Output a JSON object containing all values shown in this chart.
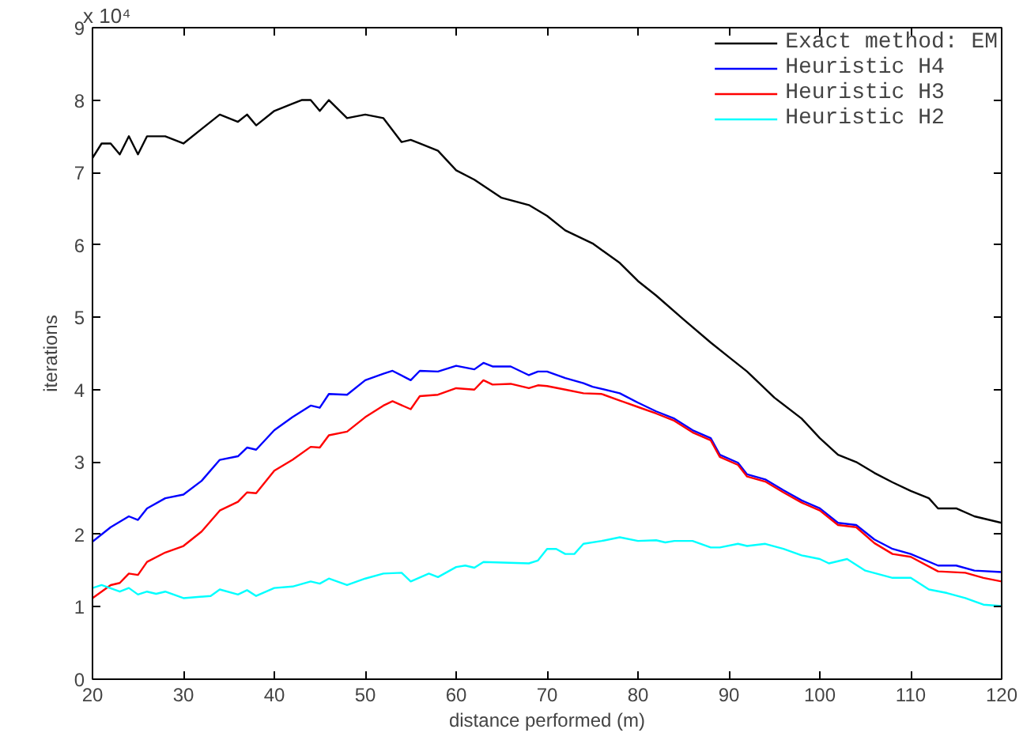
{
  "chart_data": {
    "type": "line",
    "xlabel": "distance performed (m)",
    "ylabel": "iterations",
    "annotations": [
      "x 10⁴"
    ],
    "xlim": [
      20,
      120
    ],
    "ylim": [
      0,
      9
    ],
    "xticks": [
      20,
      30,
      40,
      50,
      60,
      70,
      80,
      90,
      100,
      110,
      120
    ],
    "yticks": [
      0,
      1,
      2,
      3,
      4,
      5,
      6,
      7,
      8,
      9
    ],
    "grid": false,
    "legend": "top right",
    "line_style": "solid",
    "marker": "none",
    "series": [
      {
        "name": "Exact method: EM",
        "color": "#000000",
        "x": [
          20,
          21,
          22,
          23,
          24,
          25,
          26,
          28,
          30,
          32,
          34,
          36,
          37,
          38,
          40,
          42,
          43,
          44,
          45,
          46,
          48,
          50,
          52,
          54,
          55,
          56,
          58,
          60,
          62,
          65,
          68,
          70,
          72,
          75,
          78,
          80,
          82,
          85,
          88,
          90,
          92,
          95,
          98,
          100,
          102,
          104,
          106,
          108,
          110,
          112,
          113,
          115,
          117,
          120
        ],
        "values": [
          7.2,
          7.4,
          7.4,
          7.25,
          7.5,
          7.25,
          7.5,
          7.5,
          7.4,
          7.6,
          7.8,
          7.7,
          7.8,
          7.65,
          7.85,
          7.95,
          8.0,
          8.0,
          7.85,
          8.0,
          7.75,
          7.8,
          7.75,
          7.42,
          7.45,
          7.4,
          7.3,
          7.03,
          6.9,
          6.65,
          6.55,
          6.4,
          6.2,
          6.02,
          5.75,
          5.5,
          5.3,
          4.97,
          4.65,
          4.45,
          4.25,
          3.89,
          3.6,
          3.33,
          3.1,
          3.0,
          2.85,
          2.72,
          2.6,
          2.5,
          2.36,
          2.36,
          2.25,
          2.16
        ]
      },
      {
        "name": "Heuristic H4",
        "color": "#0000ff",
        "x": [
          20,
          22,
          24,
          25,
          26,
          28,
          30,
          32,
          34,
          36,
          37,
          38,
          40,
          42,
          44,
          45,
          46,
          48,
          50,
          52,
          53,
          55,
          56,
          58,
          60,
          62,
          63,
          64,
          66,
          68,
          69,
          70,
          72,
          74,
          75,
          78,
          80,
          82,
          84,
          86,
          88,
          89,
          91,
          92,
          94,
          96,
          98,
          100,
          102,
          104,
          106,
          108,
          110,
          113,
          115,
          117,
          120
        ],
        "values": [
          1.9,
          2.1,
          2.25,
          2.2,
          2.36,
          2.5,
          2.55,
          2.74,
          3.03,
          3.08,
          3.2,
          3.17,
          3.44,
          3.62,
          3.78,
          3.75,
          3.94,
          3.93,
          4.13,
          4.22,
          4.26,
          4.13,
          4.26,
          4.25,
          4.33,
          4.28,
          4.37,
          4.32,
          4.32,
          4.2,
          4.25,
          4.25,
          4.16,
          4.09,
          4.04,
          3.95,
          3.82,
          3.7,
          3.6,
          3.44,
          3.33,
          3.1,
          2.99,
          2.83,
          2.76,
          2.61,
          2.47,
          2.36,
          2.16,
          2.13,
          1.93,
          1.8,
          1.73,
          1.57,
          1.57,
          1.5,
          1.48
        ]
      },
      {
        "name": "Heuristic H3",
        "color": "#ff0000",
        "x": [
          20,
          22,
          23,
          24,
          25,
          26,
          28,
          30,
          32,
          34,
          36,
          37,
          38,
          40,
          42,
          44,
          45,
          46,
          48,
          50,
          52,
          53,
          55,
          56,
          58,
          60,
          62,
          63,
          64,
          66,
          68,
          69,
          70,
          72,
          74,
          76,
          78,
          80,
          82,
          84,
          86,
          88,
          89,
          91,
          92,
          94,
          96,
          98,
          100,
          102,
          104,
          106,
          108,
          110,
          113,
          116,
          118,
          120
        ],
        "values": [
          1.12,
          1.3,
          1.33,
          1.46,
          1.44,
          1.62,
          1.75,
          1.84,
          2.04,
          2.33,
          2.45,
          2.58,
          2.57,
          2.88,
          3.03,
          3.21,
          3.2,
          3.37,
          3.42,
          3.62,
          3.78,
          3.84,
          3.73,
          3.91,
          3.93,
          4.02,
          4.0,
          4.13,
          4.07,
          4.08,
          4.02,
          4.06,
          4.05,
          4.0,
          3.95,
          3.94,
          3.85,
          3.76,
          3.67,
          3.57,
          3.41,
          3.3,
          3.07,
          2.96,
          2.8,
          2.73,
          2.58,
          2.44,
          2.33,
          2.13,
          2.1,
          1.88,
          1.73,
          1.69,
          1.49,
          1.47,
          1.4,
          1.35
        ]
      },
      {
        "name": "Heuristic H2",
        "color": "#00ffff",
        "x": [
          20,
          21,
          23,
          24,
          25,
          26,
          27,
          28,
          30,
          33,
          34,
          36,
          37,
          38,
          40,
          42,
          44,
          45,
          46,
          48,
          50,
          52,
          54,
          55,
          57,
          58,
          60,
          61,
          62,
          63,
          68,
          69,
          70,
          71,
          72,
          73,
          74,
          76,
          78,
          80,
          82,
          83,
          84,
          86,
          88,
          89,
          91,
          92,
          94,
          96,
          98,
          100,
          101,
          103,
          105,
          108,
          110,
          112,
          114,
          116,
          118,
          120
        ],
        "values": [
          1.26,
          1.3,
          1.21,
          1.26,
          1.17,
          1.21,
          1.18,
          1.21,
          1.12,
          1.15,
          1.24,
          1.17,
          1.23,
          1.15,
          1.26,
          1.28,
          1.35,
          1.32,
          1.39,
          1.3,
          1.39,
          1.46,
          1.47,
          1.35,
          1.46,
          1.41,
          1.55,
          1.57,
          1.54,
          1.62,
          1.6,
          1.64,
          1.8,
          1.8,
          1.73,
          1.73,
          1.87,
          1.91,
          1.96,
          1.91,
          1.92,
          1.89,
          1.91,
          1.91,
          1.82,
          1.82,
          1.87,
          1.84,
          1.87,
          1.8,
          1.71,
          1.66,
          1.6,
          1.66,
          1.5,
          1.4,
          1.4,
          1.24,
          1.19,
          1.12,
          1.03,
          1.01
        ]
      }
    ]
  }
}
